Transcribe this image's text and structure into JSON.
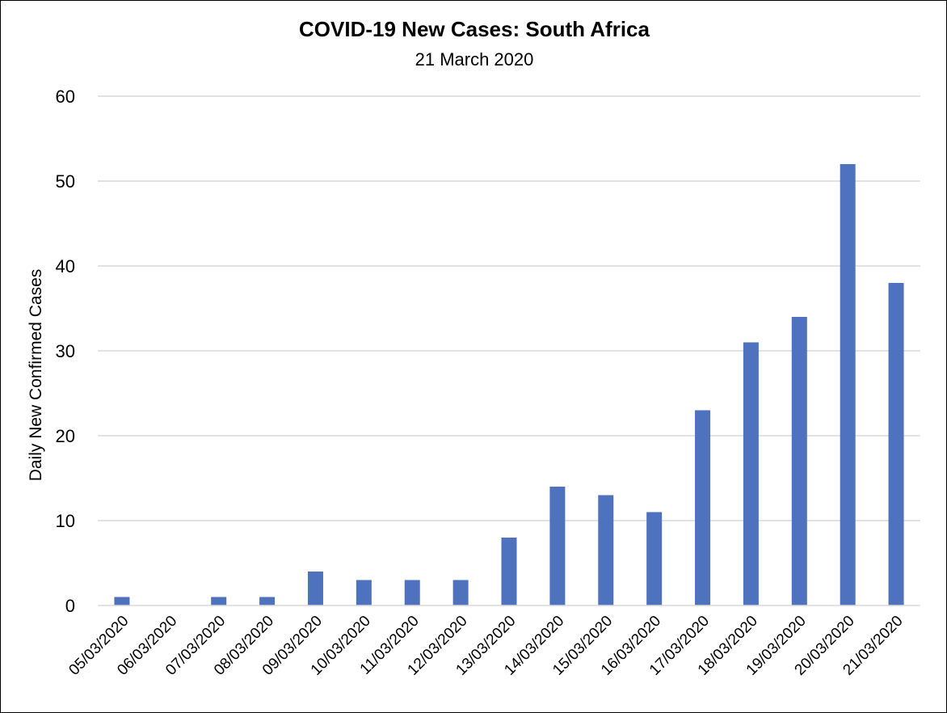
{
  "chart_data": {
    "type": "bar",
    "title": "COVID-19 New Cases: South Africa",
    "subtitle": "21 March 2020",
    "xlabel": "",
    "ylabel": "Daily New Confirmed Cases",
    "ylim": [
      0,
      60
    ],
    "yticks": [
      0,
      10,
      20,
      30,
      40,
      50,
      60
    ],
    "grid": true,
    "legend": "none",
    "bar_color": "#4f72be",
    "categories": [
      "05/03/2020",
      "06/03/2020",
      "07/03/2020",
      "08/03/2020",
      "09/03/2020",
      "10/03/2020",
      "11/03/2020",
      "12/03/2020",
      "13/03/2020",
      "14/03/2020",
      "15/03/2020",
      "16/03/2020",
      "17/03/2020",
      "18/03/2020",
      "19/03/2020",
      "20/03/2020",
      "21/03/2020"
    ],
    "values": [
      1,
      0,
      1,
      1,
      4,
      3,
      3,
      3,
      8,
      14,
      13,
      11,
      23,
      31,
      34,
      52,
      38
    ]
  }
}
